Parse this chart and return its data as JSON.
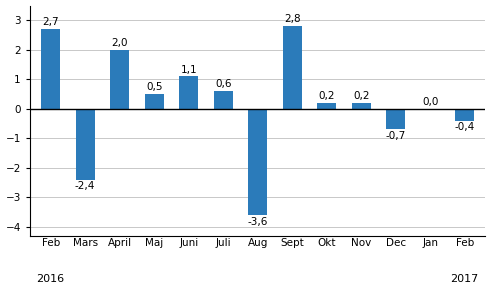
{
  "categories": [
    "Feb",
    "Mars",
    "April",
    "Maj",
    "Juni",
    "Juli",
    "Aug",
    "Sept",
    "Okt",
    "Nov",
    "Dec",
    "Jan",
    "Feb"
  ],
  "values": [
    2.7,
    -2.4,
    2.0,
    0.5,
    1.1,
    0.6,
    -3.6,
    2.8,
    0.2,
    0.2,
    -0.7,
    0.0,
    -0.4
  ],
  "bar_color": "#2b7bba",
  "ylim": [
    -4.3,
    3.5
  ],
  "yticks": [
    -4,
    -3,
    -2,
    -1,
    0,
    1,
    2,
    3
  ],
  "background_color": "#ffffff",
  "grid_color": "#c8c8c8",
  "label_fontsize": 7.5,
  "tick_fontsize": 7.5,
  "year_fontsize": 8.0,
  "bar_width": 0.55
}
